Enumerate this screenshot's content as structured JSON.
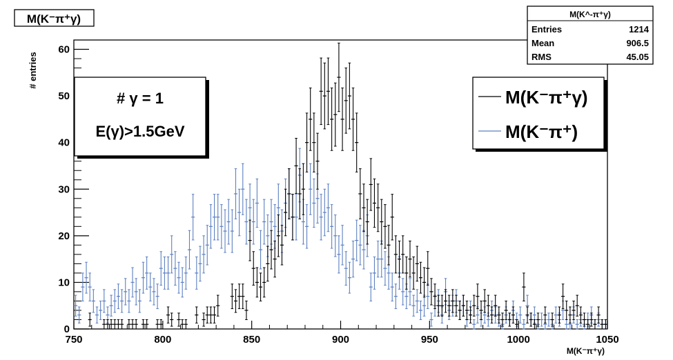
{
  "title": "M(K⁻π⁺γ)",
  "stats_box": {
    "title": "M(K^-π⁺γ)",
    "rows": [
      {
        "label": "Entries",
        "value": "1214"
      },
      {
        "label": "Mean",
        "value": "906.5"
      },
      {
        "label": "RMS",
        "value": "45.05"
      }
    ]
  },
  "cut_box": {
    "line1": "# γ = 1",
    "line2": "E(γ)>1.5GeV"
  },
  "chart_data": {
    "type": "scatter",
    "title": "M(K⁻π⁺γ)",
    "xlabel": "M(K⁻π⁺γ)",
    "ylabel": "# entries",
    "xlim": [
      750,
      1050
    ],
    "ylim": [
      0,
      62
    ],
    "x_ticks": [
      750,
      800,
      850,
      900,
      950,
      1000,
      1050
    ],
    "y_ticks": [
      0,
      10,
      20,
      30,
      40,
      50,
      60
    ],
    "grid": false,
    "legend_position": "top-right",
    "bin_width": 2,
    "series": [
      {
        "name": "M(K⁻π⁺γ)",
        "color": "#000000",
        "x": [
          759,
          767,
          769,
          771,
          773,
          775,
          777,
          781,
          783,
          785,
          789,
          791,
          797,
          799,
          803,
          805,
          809,
          811,
          813,
          819,
          823,
          825,
          827,
          829,
          831,
          839,
          841,
          843,
          845,
          847,
          849,
          851,
          853,
          855,
          857,
          859,
          861,
          863,
          865,
          867,
          869,
          871,
          873,
          875,
          877,
          879,
          881,
          883,
          885,
          887,
          889,
          891,
          893,
          895,
          897,
          899,
          901,
          903,
          905,
          907,
          909,
          911,
          913,
          915,
          917,
          919,
          921,
          923,
          925,
          927,
          929,
          931,
          933,
          935,
          937,
          939,
          941,
          943,
          945,
          947,
          949,
          951,
          953,
          955,
          957,
          959,
          961,
          963,
          965,
          967,
          969,
          971,
          973,
          975,
          977,
          979,
          981,
          983,
          985,
          987,
          989,
          991,
          993,
          995,
          997,
          999,
          1003,
          1005,
          1007,
          1009,
          1011,
          1015,
          1019,
          1023,
          1025,
          1027,
          1029,
          1031,
          1033,
          1035,
          1037,
          1039,
          1041,
          1043,
          1045,
          1047,
          1049
        ],
        "y": [
          2,
          1,
          1,
          1,
          1,
          1,
          1,
          1,
          1,
          1,
          1,
          1,
          1,
          1,
          3,
          2,
          2,
          1,
          1,
          3,
          2,
          3,
          3,
          3,
          5,
          7,
          6,
          7,
          7,
          4,
          19,
          13,
          10,
          9,
          10,
          14,
          17,
          15,
          20,
          18,
          25,
          29,
          24,
          35,
          29,
          30,
          40,
          45,
          40,
          36,
          51,
          50,
          51,
          45,
          46,
          54,
          45,
          49,
          50,
          45,
          40,
          29,
          26,
          23,
          31,
          27,
          26,
          23,
          22,
          18,
          24,
          16,
          15,
          16,
          12,
          15,
          12,
          14,
          11,
          10,
          13,
          8,
          7,
          5,
          5,
          6,
          5,
          6,
          5,
          4,
          5,
          4,
          3,
          5,
          7,
          4,
          6,
          5,
          3,
          5,
          3,
          2,
          4,
          2,
          3,
          1,
          9,
          3,
          2,
          1,
          2,
          3,
          2,
          3,
          7,
          4,
          3,
          4,
          5,
          3,
          2,
          1,
          2,
          1,
          3,
          1,
          1
        ]
      },
      {
        "name": "M(K⁻π⁺)",
        "color": "#5b7fc0",
        "x": [
          751,
          753,
          755,
          757,
          759,
          761,
          763,
          765,
          767,
          769,
          771,
          773,
          775,
          777,
          779,
          781,
          783,
          785,
          787,
          789,
          791,
          793,
          795,
          797,
          799,
          801,
          803,
          805,
          807,
          809,
          811,
          813,
          815,
          817,
          819,
          821,
          823,
          825,
          827,
          829,
          831,
          833,
          835,
          837,
          839,
          841,
          843,
          845,
          847,
          849,
          851,
          853,
          855,
          857,
          859,
          861,
          863,
          865,
          867,
          869,
          871,
          873,
          875,
          877,
          879,
          881,
          883,
          885,
          887,
          889,
          891,
          893,
          895,
          897,
          899,
          901,
          903,
          905,
          907,
          909,
          911,
          913,
          915,
          917,
          919,
          921,
          923,
          925,
          927,
          929,
          931,
          933,
          935,
          937,
          939,
          941,
          943,
          945,
          947,
          949,
          951,
          953,
          955,
          957,
          959,
          961,
          963,
          965,
          967,
          969,
          971,
          973,
          975,
          977,
          979,
          981,
          983,
          985,
          987,
          989,
          991,
          993,
          995,
          997,
          999,
          1001,
          1003,
          1005,
          1007,
          1009,
          1011,
          1013,
          1015,
          1017,
          1019,
          1021,
          1023,
          1025,
          1027,
          1029,
          1031,
          1033,
          1035,
          1037,
          1039,
          1041,
          1043,
          1045,
          1047,
          1049
        ],
        "y": [
          5,
          3,
          9,
          11,
          9,
          6,
          3,
          4,
          6,
          3,
          5,
          6,
          7,
          6,
          8,
          6,
          10,
          8,
          6,
          11,
          12,
          9,
          8,
          7,
          13,
          12,
          12,
          16,
          13,
          11,
          10,
          12,
          17,
          24,
          12,
          14,
          16,
          18,
          22,
          24,
          24,
          22,
          21,
          23,
          21,
          29,
          25,
          30,
          23,
          26,
          23,
          27,
          17,
          23,
          20,
          23,
          22,
          26,
          21,
          27,
          29,
          24,
          24,
          33,
          23,
          22,
          30,
          27,
          28,
          24,
          25,
          26,
          22,
          20,
          16,
          18,
          13,
          11,
          15,
          19,
          18,
          17,
          20,
          9,
          12,
          15,
          15,
          13,
          12,
          9,
          7,
          12,
          8,
          7,
          8,
          5,
          6,
          4,
          5,
          7,
          2,
          5,
          6,
          3,
          8,
          4,
          5,
          6,
          4,
          5,
          2,
          4,
          1,
          3,
          2,
          3,
          2,
          4,
          3,
          2,
          1,
          3,
          2,
          4,
          2,
          3,
          1,
          5,
          2,
          3,
          1,
          2,
          1,
          2,
          1,
          3,
          2,
          4,
          1,
          1,
          3,
          1,
          2,
          1,
          2,
          3,
          1,
          2,
          1,
          1
        ]
      }
    ]
  }
}
